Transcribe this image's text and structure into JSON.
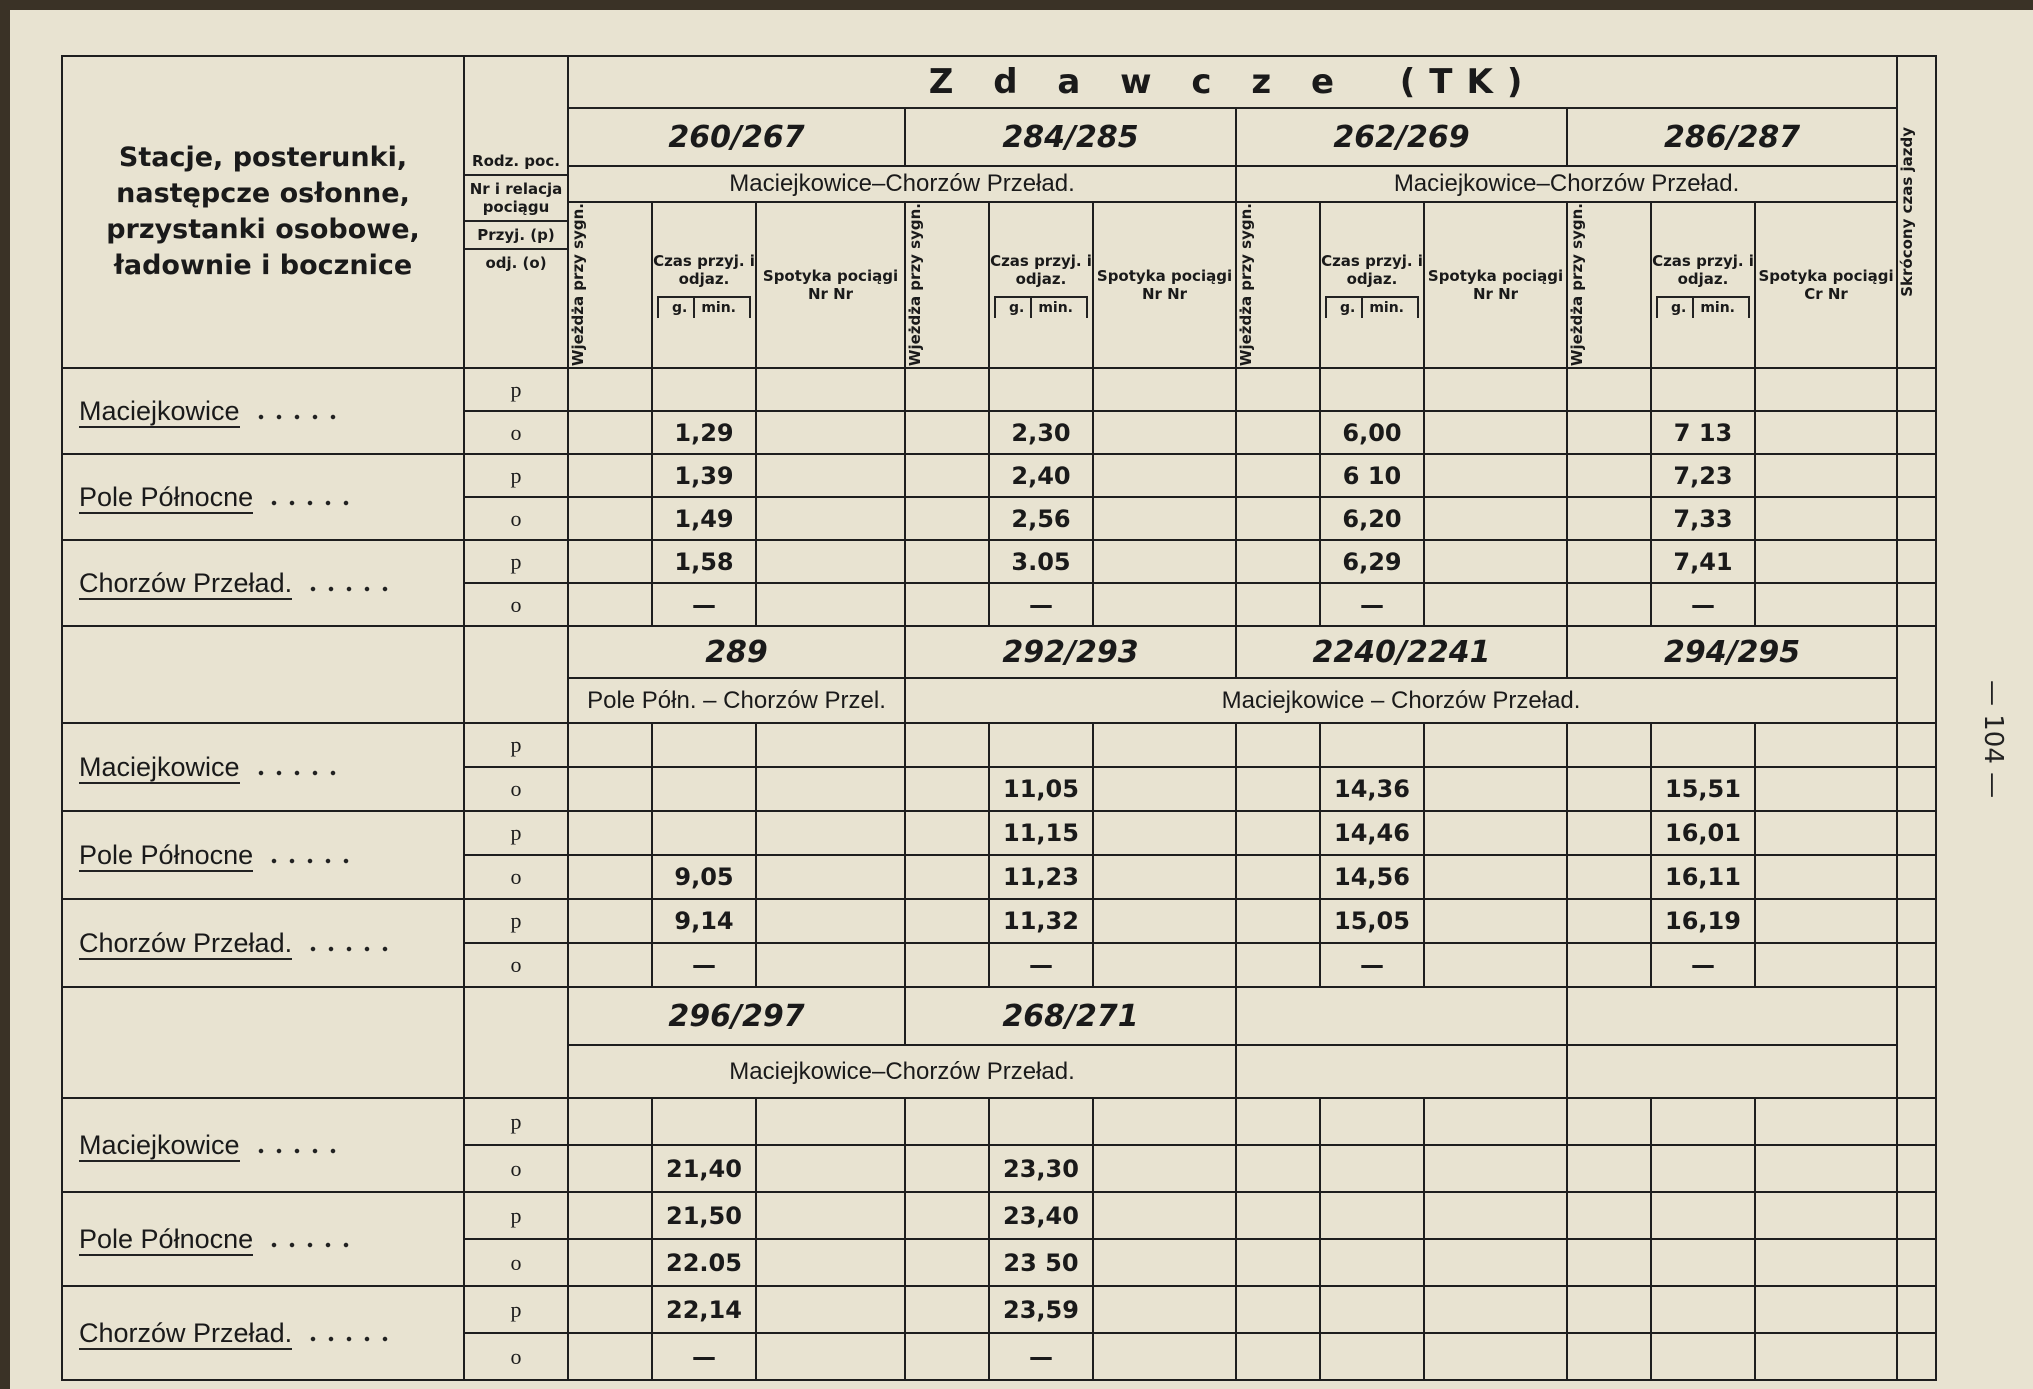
{
  "header": {
    "station_col": "Stacje, posterunki, następcze osłonne, przystanki osobowe, ładownie i bocznice",
    "kind": [
      "Rodz. poc.",
      "Nr i relacja pociągu",
      "Przyj. (p)",
      "odj. (o)"
    ],
    "title": "Z d a w c z e  (TK)",
    "groups": [
      [
        "Wjeżdża przy sygn.",
        "Czas przyj. i odjaz.",
        "Spotyka pociągi Nr Nr"
      ],
      [
        "Wjeżdża przy sygn.",
        "Czas przyj. i odjaz.",
        "Spotyka pociągi Nr Nr"
      ],
      [
        "Wjeżdża przy sygn.",
        "Czas przyj. i odjaz.",
        "Spotyka pociągi Nr Nr"
      ],
      [
        "Wjeżdża przy sygn.",
        "Czas przyj. i odjaz.",
        "Spotyka pociągi Cr Nr"
      ]
    ],
    "units": [
      "g.",
      "min."
    ],
    "shortened": "Skrócony czas jazdy"
  },
  "stations": [
    "Maciejkowice",
    "Pole Północne",
    "Chorzów Przeład."
  ],
  "kind_marks": [
    "p",
    "o"
  ],
  "blocks": [
    {
      "trains": [
        {
          "number": "260/267",
          "relation": "Maciejkowice–Chorzów Przeład.",
          "times": [
            null,
            "1,29",
            "1,39",
            "1,49",
            "1,58",
            "—"
          ]
        },
        {
          "number": "284/285",
          "times": [
            null,
            "2,30",
            "2,40",
            "2,56",
            "3.05",
            "—"
          ]
        },
        {
          "number": "262/269",
          "relation": "Maciejkowice–Chorzów Przeład.",
          "times": [
            null,
            "6,00",
            "6 10",
            "6,20",
            "6,29",
            "—"
          ]
        },
        {
          "number": "286/287",
          "times": [
            null,
            "7 13",
            "7,23",
            "7,33",
            "7,41",
            "—"
          ]
        }
      ]
    },
    {
      "trains": [
        {
          "number": "289",
          "relation": "Pole Półn. – Chorzów Przel.",
          "times": [
            null,
            null,
            null,
            "9,05",
            "9,14",
            "—"
          ]
        },
        {
          "number": "292/293",
          "relation": "Maciejkowice – Chorzów Przeład.",
          "times": [
            null,
            "11,05",
            "11,15",
            "11,23",
            "11,32",
            "—"
          ]
        },
        {
          "number": "2240/2241",
          "times": [
            null,
            "14,36",
            "14,46",
            "14,56",
            "15,05",
            "—"
          ]
        },
        {
          "number": "294/295",
          "times": [
            null,
            "15,51",
            "16,01",
            "16,11",
            "16,19",
            "—"
          ]
        }
      ]
    },
    {
      "trains": [
        {
          "number": "296/297",
          "relation": "Maciejkowice–Chorzów Przeład.",
          "times": [
            null,
            "21,40",
            "21,50",
            "22.05",
            "22,14",
            "—"
          ]
        },
        {
          "number": "268/271",
          "times": [
            null,
            "23,30",
            "23,40",
            "23 50",
            "23,59",
            "—"
          ]
        }
      ]
    }
  ],
  "page_number": "— 104 —"
}
